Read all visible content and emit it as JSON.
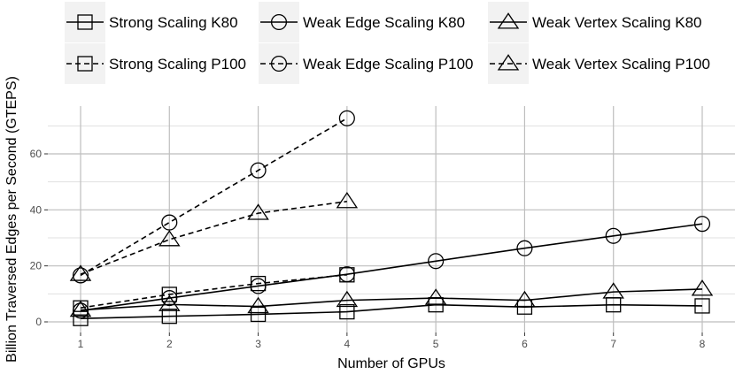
{
  "chart_data": {
    "type": "line",
    "title": "",
    "xlabel": "Number of GPUs",
    "ylabel": "Billion Traversed Edges per Second (GTEPS)",
    "xlim": [
      0.75,
      8.25
    ],
    "ylim": [
      -3,
      76
    ],
    "xticks": [
      "1",
      "2",
      "3",
      "4",
      "5",
      "6",
      "7",
      "8"
    ],
    "yticks": [
      "0",
      "20",
      "40",
      "60"
    ],
    "grid": true,
    "grid_color": "#bebebe",
    "background": "#ffffff",
    "legend_position": "top",
    "series": [
      {
        "name": "Strong Scaling K80",
        "marker": "square",
        "line": "solid",
        "x": [
          1,
          2,
          3,
          4,
          5,
          6,
          7,
          8
        ],
        "y": [
          1.2,
          2.0,
          2.7,
          3.6,
          6.1,
          5.3,
          6.1,
          5.7
        ]
      },
      {
        "name": "Weak Edge Scaling K80",
        "marker": "circle",
        "line": "solid",
        "x": [
          1,
          2,
          3,
          4,
          5,
          6,
          7,
          8
        ],
        "y": [
          4.0,
          8.5,
          12.8,
          17.0,
          21.7,
          26.3,
          30.7,
          35.0
        ]
      },
      {
        "name": "Weak Vertex Scaling K80",
        "marker": "triangle",
        "line": "solid",
        "x": [
          1,
          2,
          3,
          4,
          5,
          6,
          7,
          8
        ],
        "y": [
          4.2,
          6.2,
          5.5,
          7.7,
          8.5,
          7.7,
          10.7,
          11.7
        ]
      },
      {
        "name": "Strong Scaling P100",
        "marker": "square-dash",
        "line": "dashed",
        "x": [
          1,
          2,
          3,
          4
        ],
        "y": [
          5.0,
          9.8,
          13.7,
          16.8
        ]
      },
      {
        "name": "Weak Edge Scaling P100",
        "marker": "circle-dash",
        "line": "dashed",
        "x": [
          1,
          2,
          3,
          4
        ],
        "y": [
          16.6,
          35.5,
          54.1,
          72.7
        ]
      },
      {
        "name": "Weak Vertex Scaling P100",
        "marker": "triangle-dash",
        "line": "dashed",
        "x": [
          1,
          2,
          3,
          4
        ],
        "y": [
          17.0,
          29.4,
          38.8,
          43.0
        ]
      }
    ]
  }
}
